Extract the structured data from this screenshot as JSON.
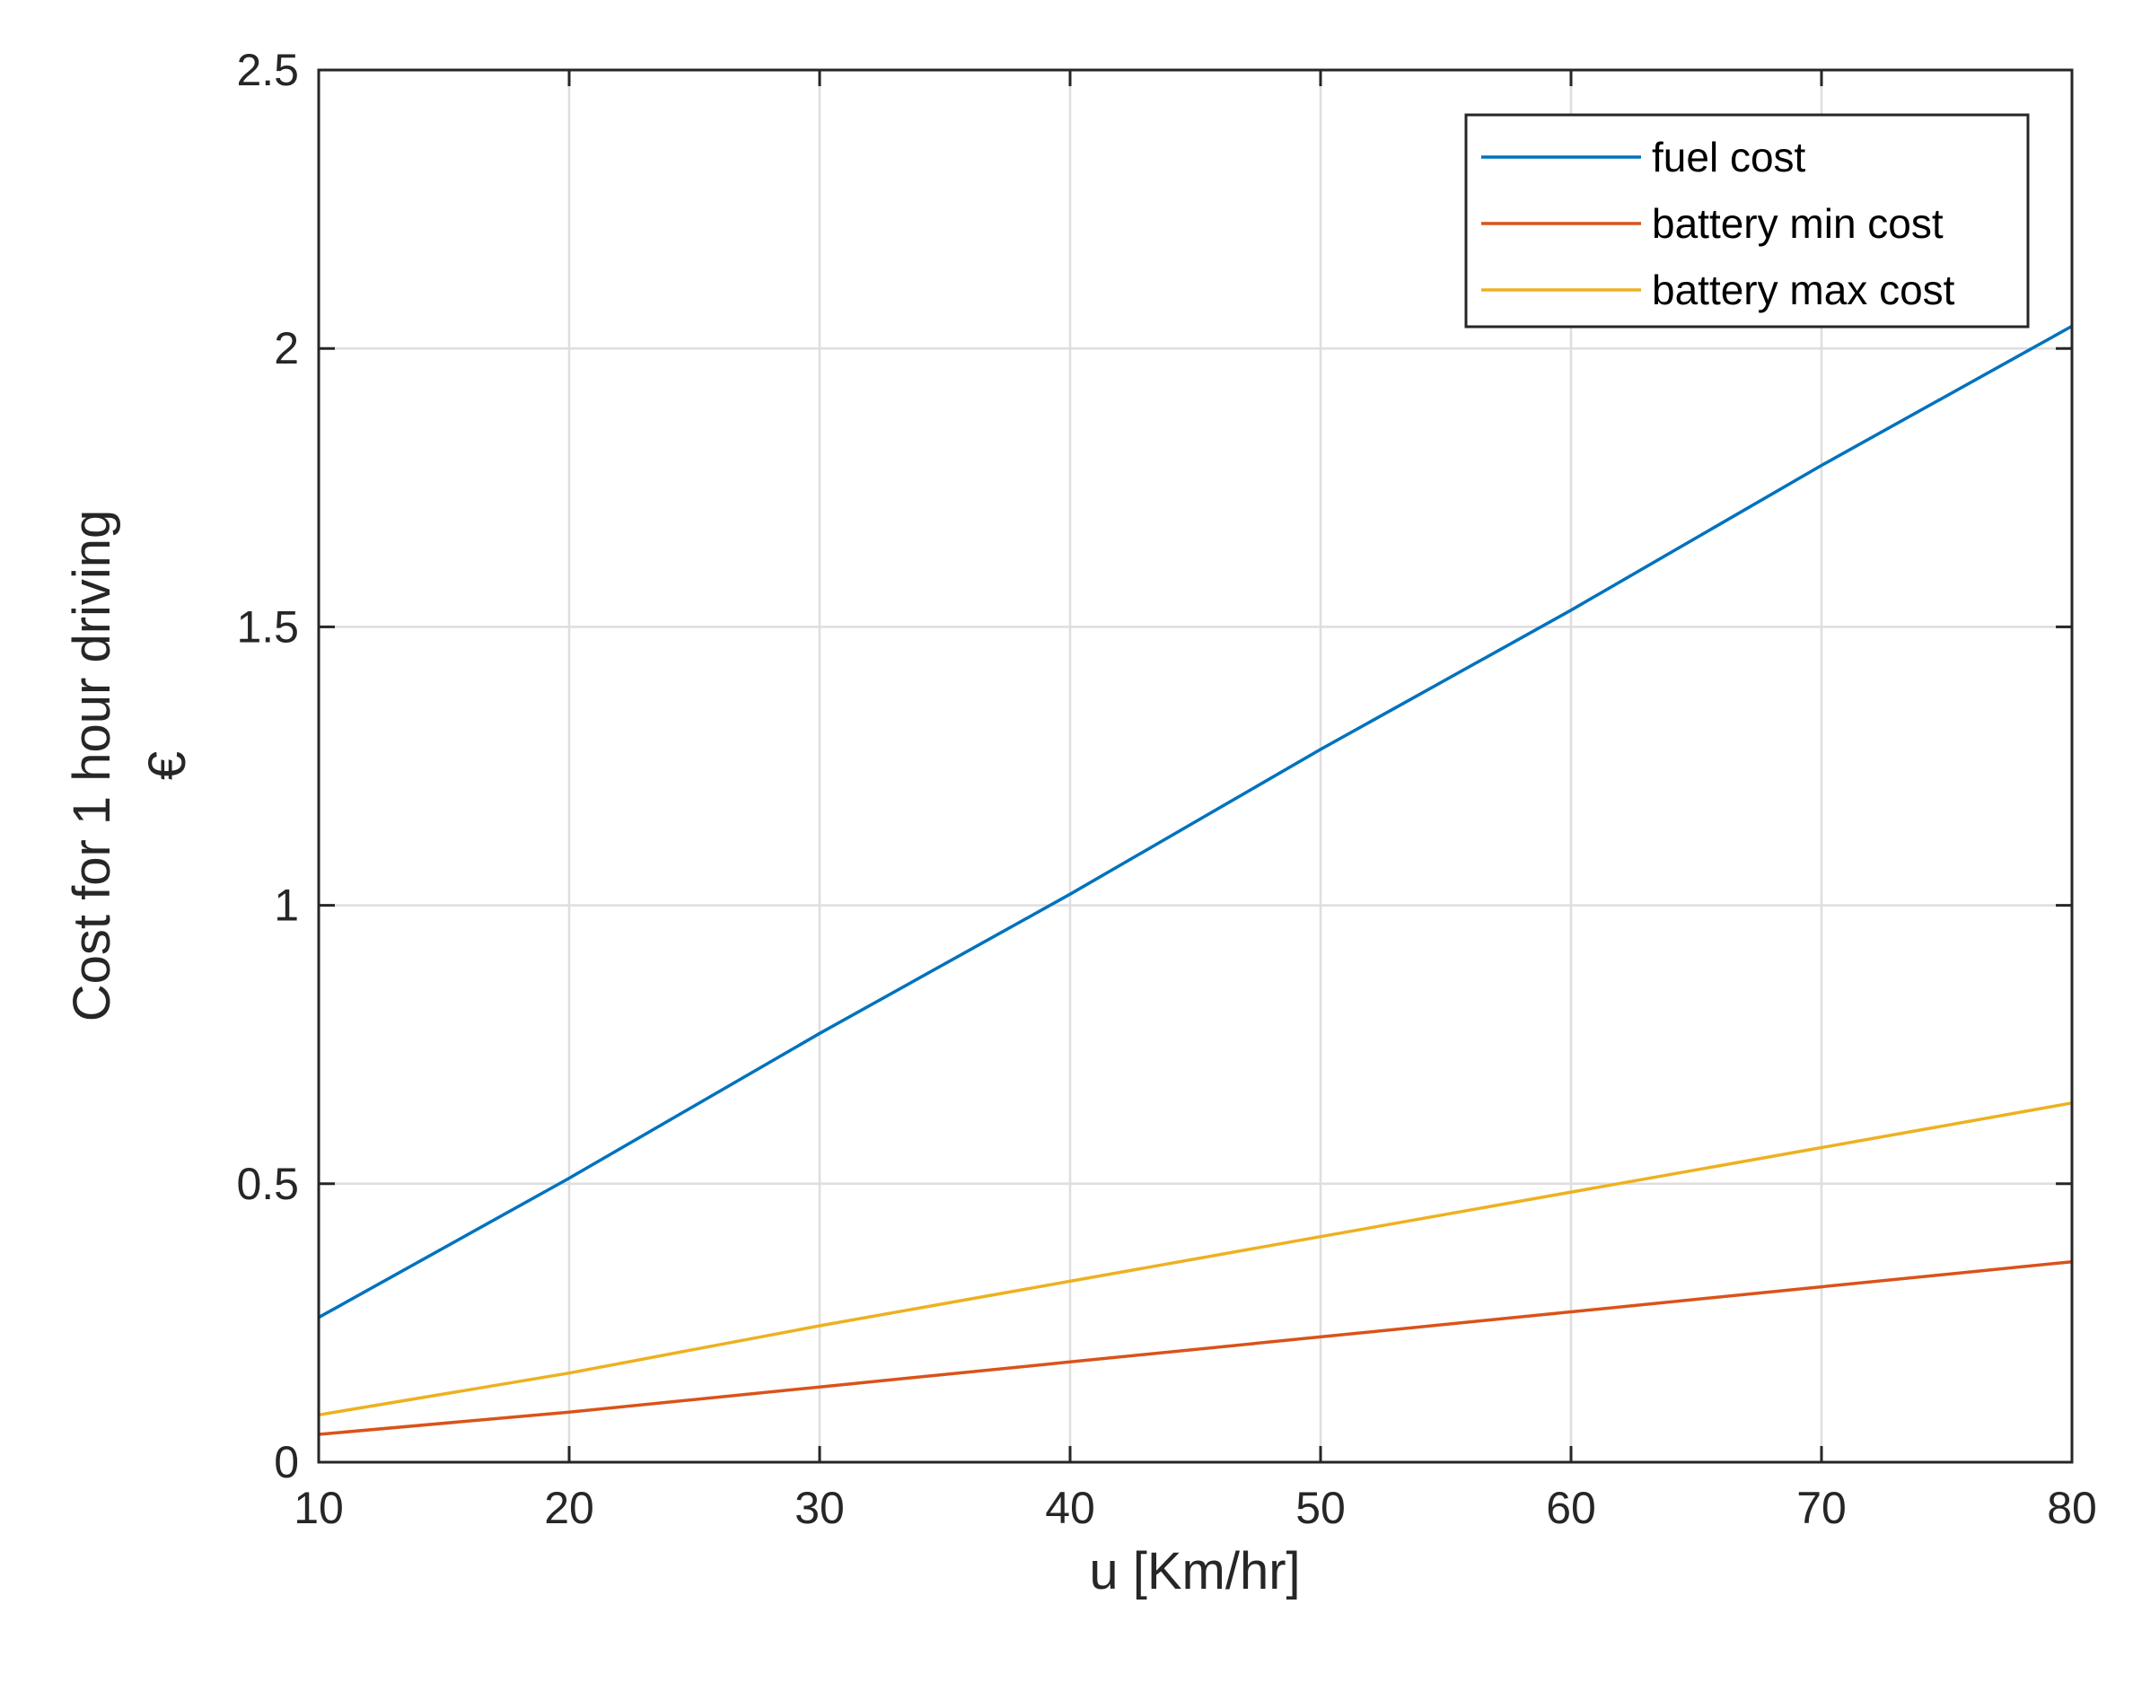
{
  "chart_data": {
    "type": "line",
    "title": "",
    "xlabel": "u [Km/hr]",
    "ylabel": "Cost for 1 hour driving",
    "ylabel_unit": "€",
    "xlim": [
      10,
      80
    ],
    "ylim": [
      0,
      2.5
    ],
    "xticks": [
      10,
      20,
      30,
      40,
      50,
      60,
      70,
      80
    ],
    "xtick_labels": [
      "10",
      "20",
      "30",
      "40",
      "50",
      "60",
      "70",
      "80"
    ],
    "yticks": [
      0,
      0.5,
      1,
      1.5,
      2,
      2.5
    ],
    "ytick_labels": [
      "0",
      "0.5",
      "1",
      "1.5",
      "2",
      "2.5"
    ],
    "grid": true,
    "legend_position": "top-right",
    "x": [
      10,
      20,
      30,
      40,
      50,
      60,
      70,
      80
    ],
    "series": [
      {
        "name": "fuel cost",
        "color": "#0072BD",
        "values": [
          0.26,
          0.51,
          0.77,
          1.02,
          1.28,
          1.53,
          1.79,
          2.04
        ]
      },
      {
        "name": "battery min cost",
        "color": "#D95319",
        "values": [
          0.05,
          0.09,
          0.135,
          0.18,
          0.225,
          0.27,
          0.315,
          0.36
        ]
      },
      {
        "name": "battery max cost",
        "color": "#EDB120",
        "values": [
          0.085,
          0.16,
          0.245,
          0.325,
          0.405,
          0.485,
          0.565,
          0.645
        ]
      }
    ]
  }
}
